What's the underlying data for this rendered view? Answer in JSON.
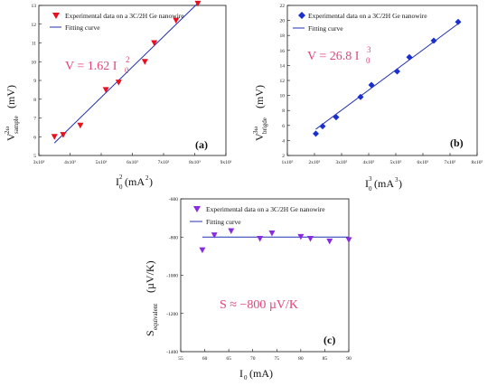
{
  "chart_data": [
    {
      "type": "scatter",
      "panel_label": "(a)",
      "xlabel": "I",
      "xlabel_sup": "2",
      "xlabel_sub": "0",
      "xlabel_unit": "(mA",
      "xlabel_unit_sup": "2",
      "xlabel_unit_end": ")",
      "ylabel": "V",
      "ylabel_sup": "2ω",
      "ylabel_sub": "sample",
      "ylabel_unit": "(mV)",
      "xlim": [
        3000,
        9000
      ],
      "ylim": [
        5,
        13
      ],
      "x_ticks": [
        "3x10³",
        "4x10³",
        "5x10³",
        "6x10³",
        "7x10³",
        "8x10³",
        "9x10³"
      ],
      "y_ticks": [
        "5",
        "6",
        "7",
        "8",
        "9",
        "10",
        "11",
        "12",
        "13"
      ],
      "equation": "V = 1.62 I",
      "equation_sub": "0",
      "equation_sup": "2",
      "marker_color": "#e8101e",
      "line_color": "#2030b0",
      "series": [
        {
          "name": "Experimental data on a 3C/2H Ge nanowire",
          "marker": "triangle-down",
          "x": [
            3500,
            3780,
            4330,
            5150,
            5560,
            6400,
            6700,
            7400,
            8100
          ],
          "y": [
            6.0,
            6.1,
            6.6,
            8.5,
            8.9,
            10.0,
            11.0,
            12.2,
            13.1
          ]
        },
        {
          "name": "Fitting curve",
          "kind": "line",
          "x": [
            3500,
            8100
          ],
          "y": [
            5.67,
            13.12
          ]
        }
      ]
    },
    {
      "type": "scatter",
      "panel_label": "(b)",
      "xlabel": "I",
      "xlabel_sup": "3",
      "xlabel_sub": "0",
      "xlabel_unit": "(mA",
      "xlabel_unit_sup": "3",
      "xlabel_unit_end": ")",
      "ylabel": "V",
      "ylabel_sup": "3ω",
      "ylabel_sub": "brigde",
      "ylabel_unit": "(mV)",
      "xlim": [
        100000,
        800000
      ],
      "ylim": [
        2,
        22
      ],
      "x_ticks": [
        "1x10⁵",
        "2x10⁵",
        "3x10⁵",
        "4x10⁵",
        "5x10⁵",
        "6x10⁵",
        "7x10⁵",
        "8x10⁵"
      ],
      "y_ticks": [
        "2",
        "4",
        "6",
        "8",
        "10",
        "12",
        "14",
        "16",
        "18",
        "20",
        "22"
      ],
      "equation": "V = 26.8 I",
      "equation_sub": "0",
      "equation_sup": "3",
      "marker_color": "#1a2fd0",
      "line_color": "#2030b0",
      "series": [
        {
          "name": "Experimental data on a 3C/2H Ge nanowire",
          "marker": "diamond",
          "x": [
            205000,
            230000,
            280000,
            370000,
            410000,
            505000,
            550000,
            640000,
            730000
          ],
          "y": [
            4.9,
            5.9,
            7.1,
            9.8,
            11.4,
            13.2,
            15.1,
            17.3,
            19.8
          ]
        },
        {
          "name": "Fitting curve",
          "kind": "line",
          "x": [
            205000,
            735000
          ],
          "y": [
            5.5,
            19.7
          ]
        }
      ]
    },
    {
      "type": "scatter",
      "panel_label": "(c)",
      "xlabel": "I",
      "xlabel_sub": "0",
      "xlabel_unit": "(mA)",
      "ylabel": "S",
      "ylabel_sub": "equivalent",
      "ylabel_unit": "(µV/K)",
      "xlim": [
        55,
        90
      ],
      "ylim": [
        -1400,
        -600
      ],
      "x_ticks": [
        "55",
        "60",
        "65",
        "70",
        "75",
        "80",
        "85",
        "90"
      ],
      "y_ticks": [
        "-600",
        "-800",
        "-1000",
        "-1200",
        "-1400"
      ],
      "y_tick_values": [
        -600,
        -800,
        -1000,
        -1200,
        -1400
      ],
      "equation": "S ≈ −800 µV/K",
      "marker_color": "#8a2be2",
      "line_color": "#2030b0",
      "series": [
        {
          "name": "Experimental data on a 3C/2H Ge nanowire",
          "marker": "triangle-down",
          "x": [
            59.5,
            62,
            65.5,
            71.5,
            74,
            80,
            82,
            86,
            90
          ],
          "y": [
            -868,
            -790,
            -768,
            -808,
            -780,
            -798,
            -808,
            -822,
            -815
          ]
        },
        {
          "name": "Fitting curve",
          "kind": "line",
          "x": [
            59.5,
            90
          ],
          "y": [
            -800,
            -800
          ]
        }
      ]
    }
  ]
}
